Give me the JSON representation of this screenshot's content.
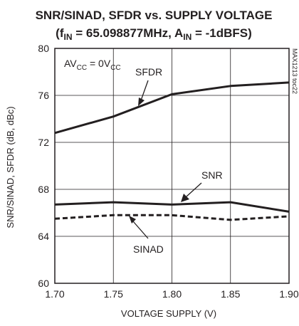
{
  "chart_data": {
    "type": "line",
    "title_line1": "SNR/SINAD, SFDR vs. SUPPLY VOLTAGE",
    "title_line2_parts": [
      "(f",
      "IN",
      " = 65.098877MHz, A",
      "IN",
      " = -1dBFS)"
    ],
    "xlabel": "VOLTAGE SUPPLY (V)",
    "ylabel": "SNR/SINAD, SFDR (dB, dBc)",
    "xlim": [
      1.7,
      1.9
    ],
    "ylim": [
      60,
      80
    ],
    "x_ticks": [
      "1.70",
      "1.75",
      "1.80",
      "1.85",
      "1.90"
    ],
    "y_ticks": [
      "60",
      "64",
      "68",
      "72",
      "76",
      "80"
    ],
    "x_tick_values": [
      1.7,
      1.75,
      1.8,
      1.85,
      1.9
    ],
    "y_tick_values": [
      60,
      64,
      68,
      72,
      76,
      80
    ],
    "grid": true,
    "annotation_parts": [
      "AV",
      "CC",
      " = 0V",
      "CC"
    ],
    "figure_code": "MAX1213 toc22",
    "series": [
      {
        "name": "SFDR",
        "style": "solid",
        "color": "#231f20",
        "x": [
          1.7,
          1.75,
          1.8,
          1.85,
          1.9
        ],
        "values": [
          72.8,
          74.2,
          76.1,
          76.8,
          77.1
        ]
      },
      {
        "name": "SNR",
        "style": "solid",
        "color": "#231f20",
        "x": [
          1.7,
          1.75,
          1.8,
          1.85,
          1.9
        ],
        "values": [
          66.7,
          66.9,
          66.7,
          66.9,
          66.1
        ]
      },
      {
        "name": "SINAD",
        "style": "dashed",
        "color": "#231f20",
        "x": [
          1.7,
          1.75,
          1.8,
          1.85,
          1.9
        ],
        "values": [
          65.5,
          65.8,
          65.8,
          65.4,
          65.7
        ]
      }
    ]
  }
}
